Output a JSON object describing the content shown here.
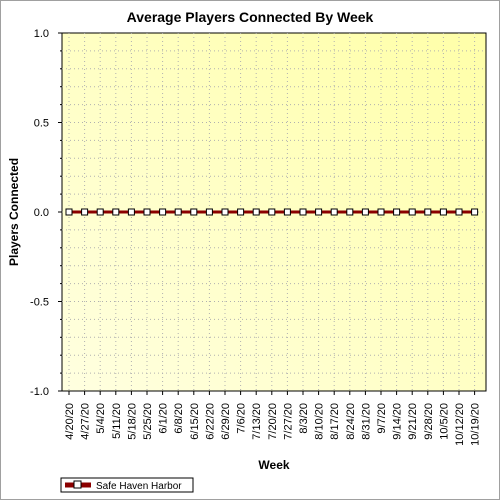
{
  "chart_data": {
    "type": "line",
    "title": "Average Players Connected By Week",
    "xlabel": "Week",
    "ylabel": "Players Connected",
    "ylim": [
      -1.0,
      1.0
    ],
    "yticks": [
      "1.0",
      "0.5",
      "0.0",
      "-0.5",
      "-1.0"
    ],
    "ytick_values": [
      1.0,
      0.5,
      0.0,
      -0.5,
      -1.0
    ],
    "categories": [
      "4/20/20",
      "4/27/20",
      "5/4/20",
      "5/11/20",
      "5/18/20",
      "5/25/20",
      "6/1/20",
      "6/8/20",
      "6/15/20",
      "6/22/20",
      "6/29/20",
      "7/6/20",
      "7/13/20",
      "7/20/20",
      "7/27/20",
      "8/3/20",
      "8/10/20",
      "8/17/20",
      "8/24/20",
      "8/31/20",
      "9/7/20",
      "9/14/20",
      "9/21/20",
      "9/28/20",
      "10/5/20",
      "10/12/20",
      "10/19/20"
    ],
    "series": [
      {
        "name": "Safe Haven Harbor",
        "color": "#8b0000",
        "values": [
          0,
          0,
          0,
          0,
          0,
          0,
          0,
          0,
          0,
          0,
          0,
          0,
          0,
          0,
          0,
          0,
          0,
          0,
          0,
          0,
          0,
          0,
          0,
          0,
          0,
          0,
          0
        ]
      }
    ],
    "grid": true,
    "legend_position": "bottom-left",
    "plot_background": [
      "#ffffe0",
      "#ffffa8"
    ]
  }
}
